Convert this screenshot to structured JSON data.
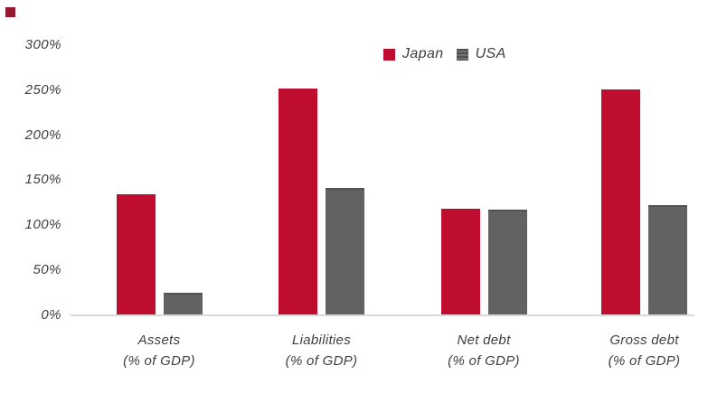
{
  "brand": {
    "logo_color": "#941b2f"
  },
  "colors": {
    "japan": "#bf0d2f",
    "usa": "#626262",
    "axis_text": "#3f3f3f",
    "baseline": "#d8d8d8",
    "background": "#ffffff"
  },
  "legend": {
    "position": "top-center",
    "items": [
      {
        "label": "Japan",
        "color": "#bf0d2f",
        "style": "solid"
      },
      {
        "label": "USA",
        "color": "#626262",
        "style": "striped"
      }
    ]
  },
  "chart_data": {
    "type": "bar",
    "title": "",
    "xlabel": "",
    "ylabel": "",
    "categories": [
      "Assets",
      "Liabilities",
      "Net debt",
      "Gross debt"
    ],
    "category_sublabel": "(% of GDP)",
    "series": [
      {
        "name": "Japan",
        "color": "#bf0d2f",
        "values": [
          134,
          252,
          118,
          251
        ]
      },
      {
        "name": "USA",
        "color": "#626262",
        "values": [
          25,
          141,
          117,
          122
        ]
      }
    ],
    "ylim": [
      0,
      300
    ],
    "yticks": [
      0,
      50,
      100,
      150,
      200,
      250,
      300
    ],
    "ytick_labels": [
      "0%",
      "50%",
      "100%",
      "150%",
      "200%",
      "250%",
      "300%"
    ],
    "grid": false,
    "legend_position": "top-center"
  }
}
